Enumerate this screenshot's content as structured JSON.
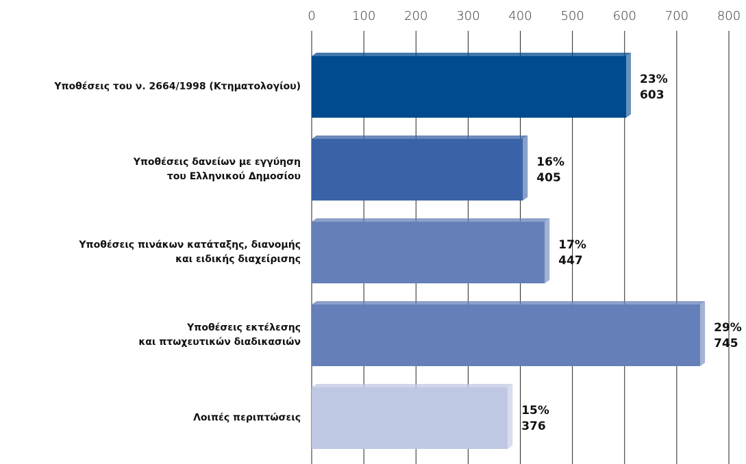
{
  "chart_data": {
    "type": "bar",
    "orientation": "horizontal",
    "categories": [
      "Υποθέσεις του ν. 2664/1998 (Κτηματολογίου)",
      "Υποθέσεις δανείων με εγγύηση\nτου Ελληνικού Δημοσίου",
      "Υποθέσεις πινάκων κατάταξης, διανομής\nκαι ειδικής διαχείρισης",
      "Υποθέσεις εκτέλεσης\nκαι πτωχευτικών διαδικασιών",
      "Λοιπές περιπτώσεις"
    ],
    "values": [
      603,
      405,
      447,
      745,
      376
    ],
    "shares": [
      "23%",
      "16%",
      "17%",
      "29%",
      "15%"
    ],
    "colors": [
      "#004a8f",
      "#3a62a6",
      "#6580b8",
      "#6580b8",
      "#bfc8e2"
    ],
    "xlim": [
      0,
      800
    ],
    "xticks": [
      0,
      100,
      200,
      300,
      400,
      500,
      600,
      700,
      800
    ],
    "grid": true
  }
}
